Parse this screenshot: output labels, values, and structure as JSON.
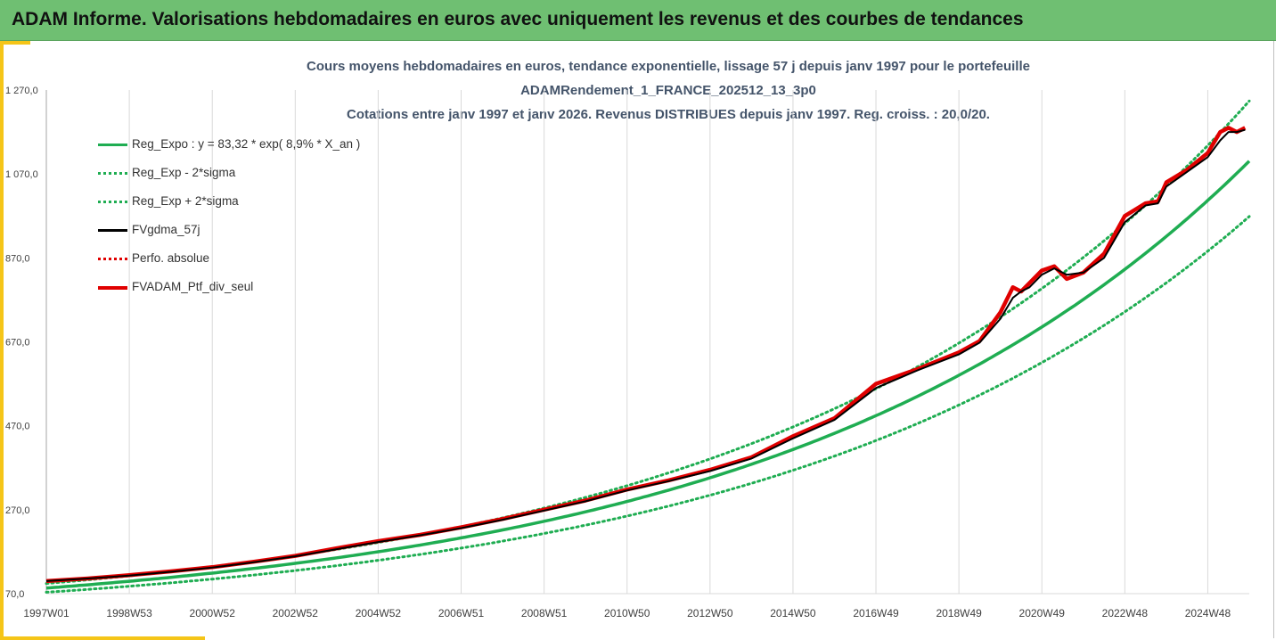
{
  "header": {
    "title": "ADAM Informe. Valorisations hebdomadaires en euros avec uniquement les revenus et des courbes de tendances"
  },
  "colors": {
    "banner": "#6fbf72",
    "accent_stripe": "#f5c518",
    "title_text": "#44546a",
    "trend_green": "#1fad52",
    "smoothed_black": "#000000",
    "portfolio_red": "#e00000"
  },
  "chart_data": {
    "type": "line",
    "title_lines": [
      "Cours moyens hebdomadaires  en euros, tendance exponentielle, lissage 57 j depuis janv 1997 pour le portefeuille",
      "ADAMRendement_1_FRANCE_202512_13_3p0",
      "Cotations entre janv 1997 et janv 2026. Revenus DISTRIBUES depuis janv 1997. Reg. croiss. : 20,0/20."
    ],
    "xlabel": "",
    "ylabel": "",
    "ylim": [
      70,
      1270
    ],
    "yticks": [
      "1 270,0",
      "1 070,0",
      "870,0",
      "670,0",
      "470,0",
      "270,0",
      "70,0"
    ],
    "ytick_values": [
      1270,
      1070,
      870,
      670,
      470,
      270,
      70
    ],
    "xlim": [
      1997.0,
      2026.0
    ],
    "xticks": [
      "1997W01",
      "1998W53",
      "2000W52",
      "2002W52",
      "2004W52",
      "2006W51",
      "2008W51",
      "2010W50",
      "2012W50",
      "2014W50",
      "2016W49",
      "2018W49",
      "2020W49",
      "2022W48",
      "2024W48"
    ],
    "xtick_values": [
      1997.0,
      1999.0,
      2001.0,
      2003.0,
      2005.0,
      2007.0,
      2009.0,
      2011.0,
      2013.0,
      2015.0,
      2017.0,
      2019.0,
      2021.0,
      2023.0,
      2025.0
    ],
    "grid": "vertical",
    "legend_position": "top-left",
    "legend": [
      {
        "label": "Reg_Expo : y = 83,32 * exp( 8,9% *  X_an )",
        "style": "solid",
        "color": "#1fad52"
      },
      {
        "label": "Reg_Exp - 2*sigma",
        "style": "dotted",
        "color": "#1fad52"
      },
      {
        "label": "Reg_Exp + 2*sigma",
        "style": "dotted",
        "color": "#1fad52"
      },
      {
        "label": "FVgdma_57j",
        "style": "solid",
        "color": "#000000"
      },
      {
        "label": "Perfo. absolue",
        "style": "dotted",
        "color": "#e00000"
      },
      {
        "label": "FVADAM_Ptf_div_seul",
        "style": "solid",
        "color": "#e00000"
      }
    ],
    "regression": {
      "a": 83.32,
      "rate": 0.089,
      "lower_factor": 0.88,
      "upper_factor": 1.13
    },
    "series": [
      {
        "name": "FVADAM_Ptf_div_seul",
        "x": [
          1997.0,
          1998.0,
          1999.0,
          2000.0,
          2001.0,
          2002.0,
          2003.0,
          2004.0,
          2005.0,
          2006.0,
          2007.0,
          2008.0,
          2009.0,
          2010.0,
          2011.0,
          2012.0,
          2013.0,
          2014.0,
          2015.0,
          2016.0,
          2017.0,
          2018.0,
          2019.0,
          2019.5,
          2020.0,
          2020.3,
          2020.5,
          2020.7,
          2021.0,
          2021.3,
          2021.6,
          2022.0,
          2022.5,
          2023.0,
          2023.5,
          2023.8,
          2024.0,
          2024.5,
          2025.0,
          2025.3,
          2025.5,
          2025.7,
          2025.9
        ],
        "values": [
          100,
          106,
          114,
          123,
          133,
          146,
          160,
          178,
          195,
          210,
          228,
          248,
          270,
          292,
          318,
          340,
          365,
          395,
          445,
          488,
          570,
          605,
          645,
          672,
          740,
          800,
          790,
          810,
          840,
          850,
          820,
          835,
          880,
          970,
          1000,
          1005,
          1050,
          1080,
          1120,
          1170,
          1180,
          1170,
          1180
        ]
      },
      {
        "name": "FVgdma_57j",
        "x": [
          1997.0,
          1998.0,
          1999.0,
          2000.0,
          2001.0,
          2002.0,
          2003.0,
          2004.0,
          2005.0,
          2006.0,
          2007.0,
          2008.0,
          2009.0,
          2010.0,
          2011.0,
          2012.0,
          2013.0,
          2014.0,
          2015.0,
          2016.0,
          2017.0,
          2018.0,
          2019.0,
          2019.5,
          2020.0,
          2020.3,
          2020.5,
          2020.7,
          2021.0,
          2021.3,
          2021.6,
          2022.0,
          2022.5,
          2023.0,
          2023.5,
          2023.8,
          2024.0,
          2024.5,
          2025.0,
          2025.3,
          2025.5,
          2025.7,
          2025.9
        ],
        "values": [
          100,
          106,
          113,
          122,
          132,
          145,
          159,
          176,
          193,
          209,
          226,
          246,
          268,
          290,
          316,
          338,
          362,
          392,
          440,
          484,
          560,
          602,
          640,
          668,
          725,
          775,
          790,
          800,
          830,
          845,
          830,
          835,
          870,
          955,
          995,
          1000,
          1040,
          1075,
          1110,
          1150,
          1170,
          1170,
          1175
        ]
      }
    ]
  }
}
